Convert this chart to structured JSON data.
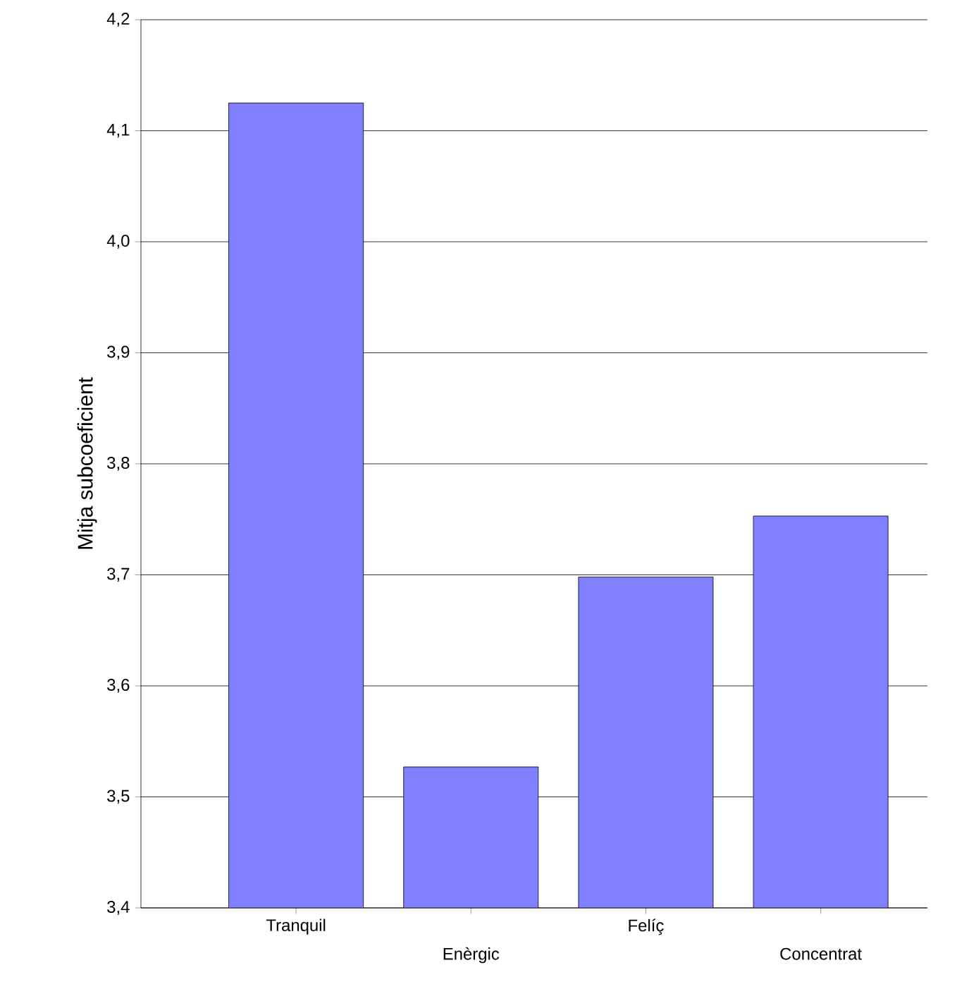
{
  "chart_data": {
    "type": "bar",
    "ylabel": "Mitja subcoeficient",
    "categories": [
      "Tranquil",
      "Enèrgic",
      "Felíç",
      "Concentrat"
    ],
    "values": [
      4.125,
      3.527,
      3.698,
      3.753
    ],
    "color": "#8080ff",
    "ylim": [
      3.4,
      4.2
    ],
    "yticks": [
      {
        "value": 3.4,
        "label": "3,4"
      },
      {
        "value": 3.5,
        "label": "3,5"
      },
      {
        "value": 3.6,
        "label": "3,6"
      },
      {
        "value": 3.7,
        "label": "3,7"
      },
      {
        "value": 3.8,
        "label": "3,8"
      },
      {
        "value": 3.9,
        "label": "3,9"
      },
      {
        "value": 4.0,
        "label": "4,0"
      },
      {
        "value": 4.1,
        "label": "4,1"
      },
      {
        "value": 4.2,
        "label": "4,2"
      }
    ],
    "grid": "y"
  }
}
